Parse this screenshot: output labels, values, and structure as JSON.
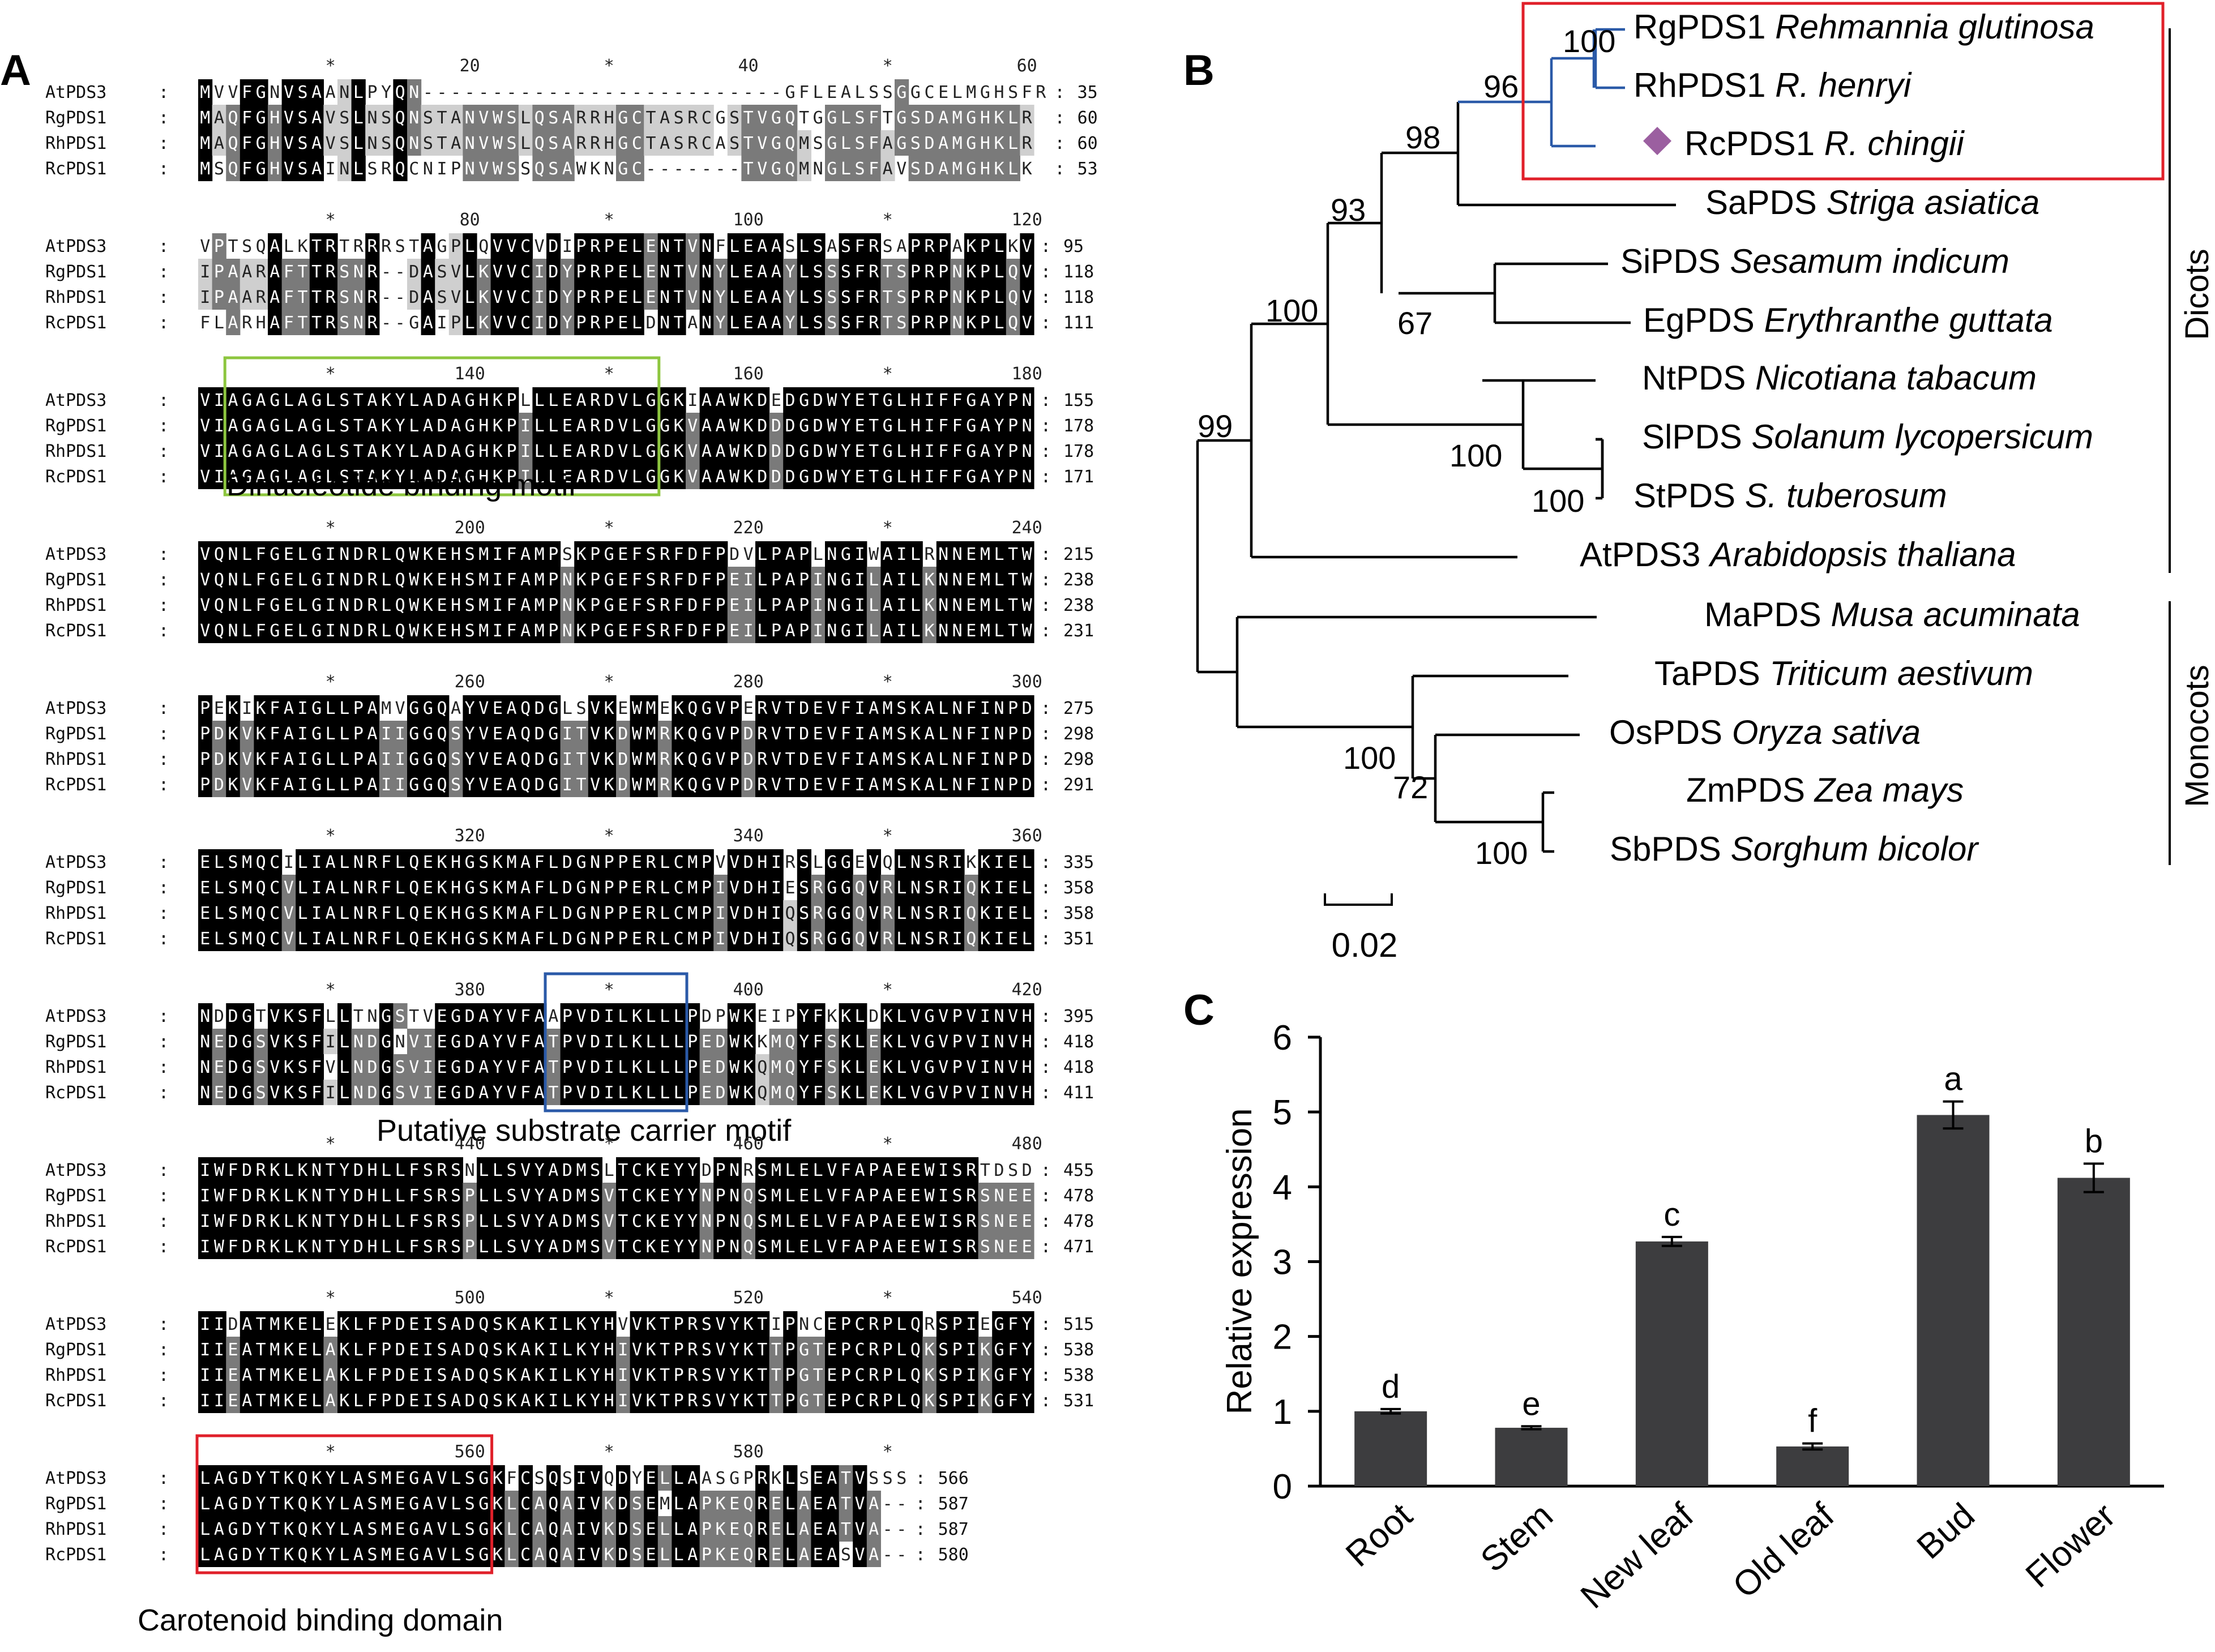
{
  "panel_labels": {
    "a": "A",
    "b": "B",
    "c": "C"
  },
  "alignment": {
    "blocks": [
      {
        "ruler": {
          "star_left": "*",
          "label_mid": "20",
          "star_right": "*",
          "label_mid2": "40",
          "star_end": "*",
          "label_end": "60"
        },
        "rows": [
          {
            "name": "AtPDS3",
            "seq": "MVVFGNVSAANLPYQN--------------------------GFLEALSSGGCELMGHSFR",
            "count": "35"
          },
          {
            "name": "RgPDS1",
            "seq": "MAQFGHVSAVSLNSQNSTANVWSLQSARRHGCTASRCGSTVGQTGGLSFTGSDAMGHKLR",
            "count": "60"
          },
          {
            "name": "RhPDS1",
            "seq": "MAQFGHVSAVSLNSQNSTANVWSLQSARRHGCTASRCASTVGQMSGLSFAGSDAMGHKLR",
            "count": "60"
          },
          {
            "name": "RcPDS1",
            "seq": "MSQFGHVSAINLSRQCNIPNVWSSQSAWKNGC-------TVGQMNGLSFAVSDAMGHKLK",
            "count": "53"
          }
        ]
      },
      {
        "ruler": {
          "star_left": "*",
          "label_mid": "80",
          "star_right": "*",
          "label_mid2": "100",
          "star_end": "*",
          "label_end": "120"
        },
        "rows": [
          {
            "name": "AtPDS3",
            "seq": "VPTSQALKTRTRRRSTAGPLQVVCVDIPRPELENTVNFLEAASLSASFRSAPRPAKPLKV",
            "count": "95"
          },
          {
            "name": "RgPDS1",
            "seq": "IPAARAFTTRSNR--DASVLKVVCIDYPRPELENTVNYLEAAYLSSSFRTSPRPNKPLQV",
            "count": "118"
          },
          {
            "name": "RhPDS1",
            "seq": "IPAARAFTTRSNR--DASVLKVVCIDYPRPELENTVNYLEAAYLSSSFRTSPRPNKPLQV",
            "count": "118"
          },
          {
            "name": "RcPDS1",
            "seq": "FLARHAFTTRSNR--GAIPLKVVCIDYPRPELDNTANYLEAAYLSSSFRTSPRPNKPLQV",
            "count": "111"
          }
        ]
      },
      {
        "ruler": {
          "star_left": "*",
          "label_mid": "140",
          "star_right": "*",
          "label_mid2": "160",
          "star_end": "*",
          "label_end": "180"
        },
        "rows": [
          {
            "name": "AtPDS3",
            "seq": "VIAGAGLAGLSTAKYLADAGHKPLLLEARDVLGGKIAAWKDEDGDWYETGLHIFFGAYPN",
            "count": "155"
          },
          {
            "name": "RgPDS1",
            "seq": "VIAGAGLAGLSTAKYLADAGHKPILLEARDVLGGKVAAWKDDDGDWYETGLHIFFGAYPN",
            "count": "178"
          },
          {
            "name": "RhPDS1",
            "seq": "VIAGAGLAGLSTAKYLADAGHKPILLEARDVLGGKVAAWKDDDGDWYETGLHIFFGAYPN",
            "count": "178"
          },
          {
            "name": "RcPDS1",
            "seq": "VIAGAGLAGLSTAKYLADAGHKPILLEARDVLGGKVAAWKDDDGDWYETGLHIFFGAYPN",
            "count": "171"
          }
        ],
        "motif_label": "Dinucleotide binding motif"
      },
      {
        "ruler": {
          "star_left": "*",
          "label_mid": "200",
          "star_right": "*",
          "label_mid2": "220",
          "star_end": "*",
          "label_end": "240"
        },
        "rows": [
          {
            "name": "AtPDS3",
            "seq": "VQNLFGELGINDRLQWKEHSMIFAMPSKPGEFSRFDFPDVLPAPLNGIWAILRNNEMLTW",
            "count": "215"
          },
          {
            "name": "RgPDS1",
            "seq": "VQNLFGELGINDRLQWKEHSMIFAMPNKPGEFSRFDFPEILPAPINGILAILKNNEMLTW",
            "count": "238"
          },
          {
            "name": "RhPDS1",
            "seq": "VQNLFGELGINDRLQWKEHSMIFAMPNKPGEFSRFDFPEILPAPINGILAILKNNEMLTW",
            "count": "238"
          },
          {
            "name": "RcPDS1",
            "seq": "VQNLFGELGINDRLQWKEHSMIFAMPNKPGEFSRFDFPEILPAPINGILAILKNNEMLTW",
            "count": "231"
          }
        ]
      },
      {
        "ruler": {
          "star_left": "*",
          "label_mid": "260",
          "star_right": "*",
          "label_mid2": "280",
          "star_end": "*",
          "label_end": "300"
        },
        "rows": [
          {
            "name": "AtPDS3",
            "seq": "PEKIKFAIGLLPAMVGGQAYVEAQDGLSVKEWMEKQGVPERVTDEVFIAMSKALNFINPD",
            "count": "275"
          },
          {
            "name": "RgPDS1",
            "seq": "PDKVKFAIGLLPAIIGGQSYVEAQDGITVKDWMRKQGVPDRVTDEVFIAMSKALNFINPD",
            "count": "298"
          },
          {
            "name": "RhPDS1",
            "seq": "PDKVKFAIGLLPAIIGGQSYVEAQDGITVKDWMRKQGVPDRVTDEVFIAMSKALNFINPD",
            "count": "298"
          },
          {
            "name": "RcPDS1",
            "seq": "PDKVKFAIGLLPAIIGGQSYVEAQDGITVKDWMRKQGVPDRVTDEVFIAMSKALNFINPD",
            "count": "291"
          }
        ]
      },
      {
        "ruler": {
          "star_left": "*",
          "label_mid": "320",
          "star_right": "*",
          "label_mid2": "340",
          "star_end": "*",
          "label_end": "360"
        },
        "rows": [
          {
            "name": "AtPDS3",
            "seq": "ELSMQCILIALNRFLQEKHGSKMAFLDGNPPERLCMPVVDHIRSLGGEVQLNSRIKKIEL",
            "count": "335"
          },
          {
            "name": "RgPDS1",
            "seq": "ELSMQCVLIALNRFLQEKHGSKMAFLDGNPPERLCMPIVDHIESRGGQVRLNSRIQKIEL",
            "count": "358"
          },
          {
            "name": "RhPDS1",
            "seq": "ELSMQCVLIALNRFLQEKHGSKMAFLDGNPPERLCMPIVDHIQSRGGQVRLNSRIQKIEL",
            "count": "358"
          },
          {
            "name": "RcPDS1",
            "seq": "ELSMQCVLIALNRFLQEKHGSKMAFLDGNPPERLCMPIVDHIQSRGGQVRLNSRIQKIEL",
            "count": "351"
          }
        ]
      },
      {
        "ruler": {
          "star_left": "*",
          "label_mid": "380",
          "star_right": "*",
          "label_mid2": "400",
          "star_end": "*",
          "label_end": "420"
        },
        "rows": [
          {
            "name": "AtPDS3",
            "seq": "NDDGTVKSFLLTNGSTVEGDAYVFAAPVDILKLLLPDPWKEIPYFKKLDKLVGVPVINVH",
            "count": "395"
          },
          {
            "name": "RgPDS1",
            "seq": "NEDGSVKSFILNDGNVIEGDAYVFATPVDILKLLLPEDWKKMQYFSKLEKLVGVPVINVH",
            "count": "418"
          },
          {
            "name": "RhPDS1",
            "seq": "NEDGSVKSFVLNDGSVIEGDAYVFATPVDILKLLLPEDWKQMQYFSKLEKLVGVPVINVH",
            "count": "418"
          },
          {
            "name": "RcPDS1",
            "seq": "NEDGSVKSFILNDGSVIEGDAYVFATPVDILKLLLPEDWKQMQYFSKLEKLVGVPVINVH",
            "count": "411"
          }
        ],
        "motif_label": "Putative substrate carrier motif"
      },
      {
        "ruler": {
          "star_left": "*",
          "label_mid": "440",
          "star_right": "*",
          "label_mid2": "460",
          "star_end": "*",
          "label_end": "480"
        },
        "rows": [
          {
            "name": "AtPDS3",
            "seq": "IWFDRKLKNTYDHLLFSRSNLLSVYADMSLTCKEYYDPNRSMLELVFAPAEEWISRTDSD",
            "count": "455"
          },
          {
            "name": "RgPDS1",
            "seq": "IWFDRKLKNTYDHLLFSRSPLLSVYADMSVTCKEYYNPNQSMLELVFAPAEEWISRSNEE",
            "count": "478"
          },
          {
            "name": "RhPDS1",
            "seq": "IWFDRKLKNTYDHLLFSRSPLLSVYADMSVTCKEYYNPNQSMLELVFAPAEEWISRSNEE",
            "count": "478"
          },
          {
            "name": "RcPDS1",
            "seq": "IWFDRKLKNTYDHLLFSRSPLLSVYADMSVTCKEYYNPNQSMLELVFAPAEEWISRSNEE",
            "count": "471"
          }
        ]
      },
      {
        "ruler": {
          "star_left": "*",
          "label_mid": "500",
          "star_right": "*",
          "label_mid2": "520",
          "star_end": "*",
          "label_end": "540"
        },
        "rows": [
          {
            "name": "AtPDS3",
            "seq": "IIDATMKELEKLFPDEISADQSKAKILKYHVVKTPRSVYKTIPNCEPCRPLQRSPIEGFY",
            "count": "515"
          },
          {
            "name": "RgPDS1",
            "seq": "IIEATMKELAKLFPDEISADQSKAKILKYHIVKTPRSVYKTTPGTEPCRPLQKSPIKGFY",
            "count": "538"
          },
          {
            "name": "RhPDS1",
            "seq": "IIEATMKELAKLFPDEISADQSKAKILKYHIVKTPRSVYKTTPGTEPCRPLQKSPIKGFY",
            "count": "538"
          },
          {
            "name": "RcPDS1",
            "seq": "IIEATMKELAKLFPDEISADQSKAKILKYHIVKTPRSVYKTTPGTEPCRPLQKSPIKGFY",
            "count": "531"
          }
        ]
      },
      {
        "ruler": {
          "star_left": "*",
          "label_mid": "560",
          "star_right": "*",
          "label_mid2": "580",
          "star_end": "*",
          "label_end": ""
        },
        "rows": [
          {
            "name": "AtPDS3",
            "seq": "LAGDYTKQKYLASMEGAVLSGKFCSQSIVQDYELLAASGPRKLSEATVSSS",
            "count": "566"
          },
          {
            "name": "RgPDS1",
            "seq": "LAGDYTKQKYLASMEGAVLSGKLCAQAIVKDSEMLAPKEQRELAEATVA--",
            "count": "587"
          },
          {
            "name": "RhPDS1",
            "seq": "LAGDYTKQKYLASMEGAVLSGKLCAQAIVKDSELLAPKEQRELAEATVA--",
            "count": "587"
          },
          {
            "name": "RcPDS1",
            "seq": "LAGDYTKQKYLASMEGAVLSGKLCAQAIVKDSELLAPKEQRELAEASVA--",
            "count": "580"
          }
        ],
        "motif_label": "Carotenoid binding domain"
      }
    ]
  },
  "tree": {
    "leaves": [
      {
        "code": "RgPDS1",
        "species": "Rehmannia glutinosa"
      },
      {
        "code": "RhPDS1",
        "species": "R. henryi"
      },
      {
        "code": "RcPDS1",
        "species": "R. chingii"
      },
      {
        "code": "SaPDS",
        "species": "Striga asiatica"
      },
      {
        "code": "SiPDS",
        "species": "Sesamum indicum"
      },
      {
        "code": "EgPDS",
        "species": "Erythranthe guttata"
      },
      {
        "code": "NtPDS",
        "species": "Nicotiana tabacum"
      },
      {
        "code": "SlPDS",
        "species": "Solanum lycopersicum"
      },
      {
        "code": "StPDS",
        "species": "S. tuberosum"
      },
      {
        "code": "AtPDS3",
        "species": "Arabidopsis thaliana"
      },
      {
        "code": "MaPDS",
        "species": "Musa acuminata"
      },
      {
        "code": "TaPDS",
        "species": "Triticum aestivum"
      },
      {
        "code": "OsPDS",
        "species": "Oryza sativa"
      },
      {
        "code": "ZmPDS",
        "species": "Zea mays"
      },
      {
        "code": "SbPDS",
        "species": "Sorghum bicolor"
      }
    ],
    "bootstrap": {
      "rg_rh": "100",
      "rehmannia": "96",
      "sa_clade": "98",
      "lamiales": "93",
      "si_eg": "67",
      "asterids": "100",
      "dicots_root": "99",
      "sol": "100",
      "sl_st": "100",
      "monocot_grass": "100",
      "os_zm": "72",
      "zm_sb": "100"
    },
    "group_labels": {
      "dicots": "Dicots",
      "monocots": "Monocots"
    },
    "scale_label": "0.02",
    "colors": {
      "highlight_box": "#e0202a",
      "highlight_branch": "#2b5aa8",
      "marker": "#9b5fa0"
    }
  },
  "chart_data": {
    "type": "bar",
    "categories": [
      "Root",
      "Stem",
      "New leaf",
      "Old leaf",
      "Bud",
      "Flower"
    ],
    "values": [
      1.0,
      0.78,
      3.27,
      0.53,
      4.96,
      4.12
    ],
    "errors": [
      0.03,
      0.02,
      0.06,
      0.04,
      0.18,
      0.19
    ],
    "letters": [
      "d",
      "e",
      "c",
      "f",
      "a",
      "b"
    ],
    "ylabel": "Relative expression",
    "xlabel": "",
    "ylim": [
      0,
      6
    ],
    "yticks": [
      "0",
      "1",
      "2",
      "3",
      "4",
      "5",
      "6"
    ],
    "grid": false,
    "bar_color": "#3d3d3f"
  }
}
